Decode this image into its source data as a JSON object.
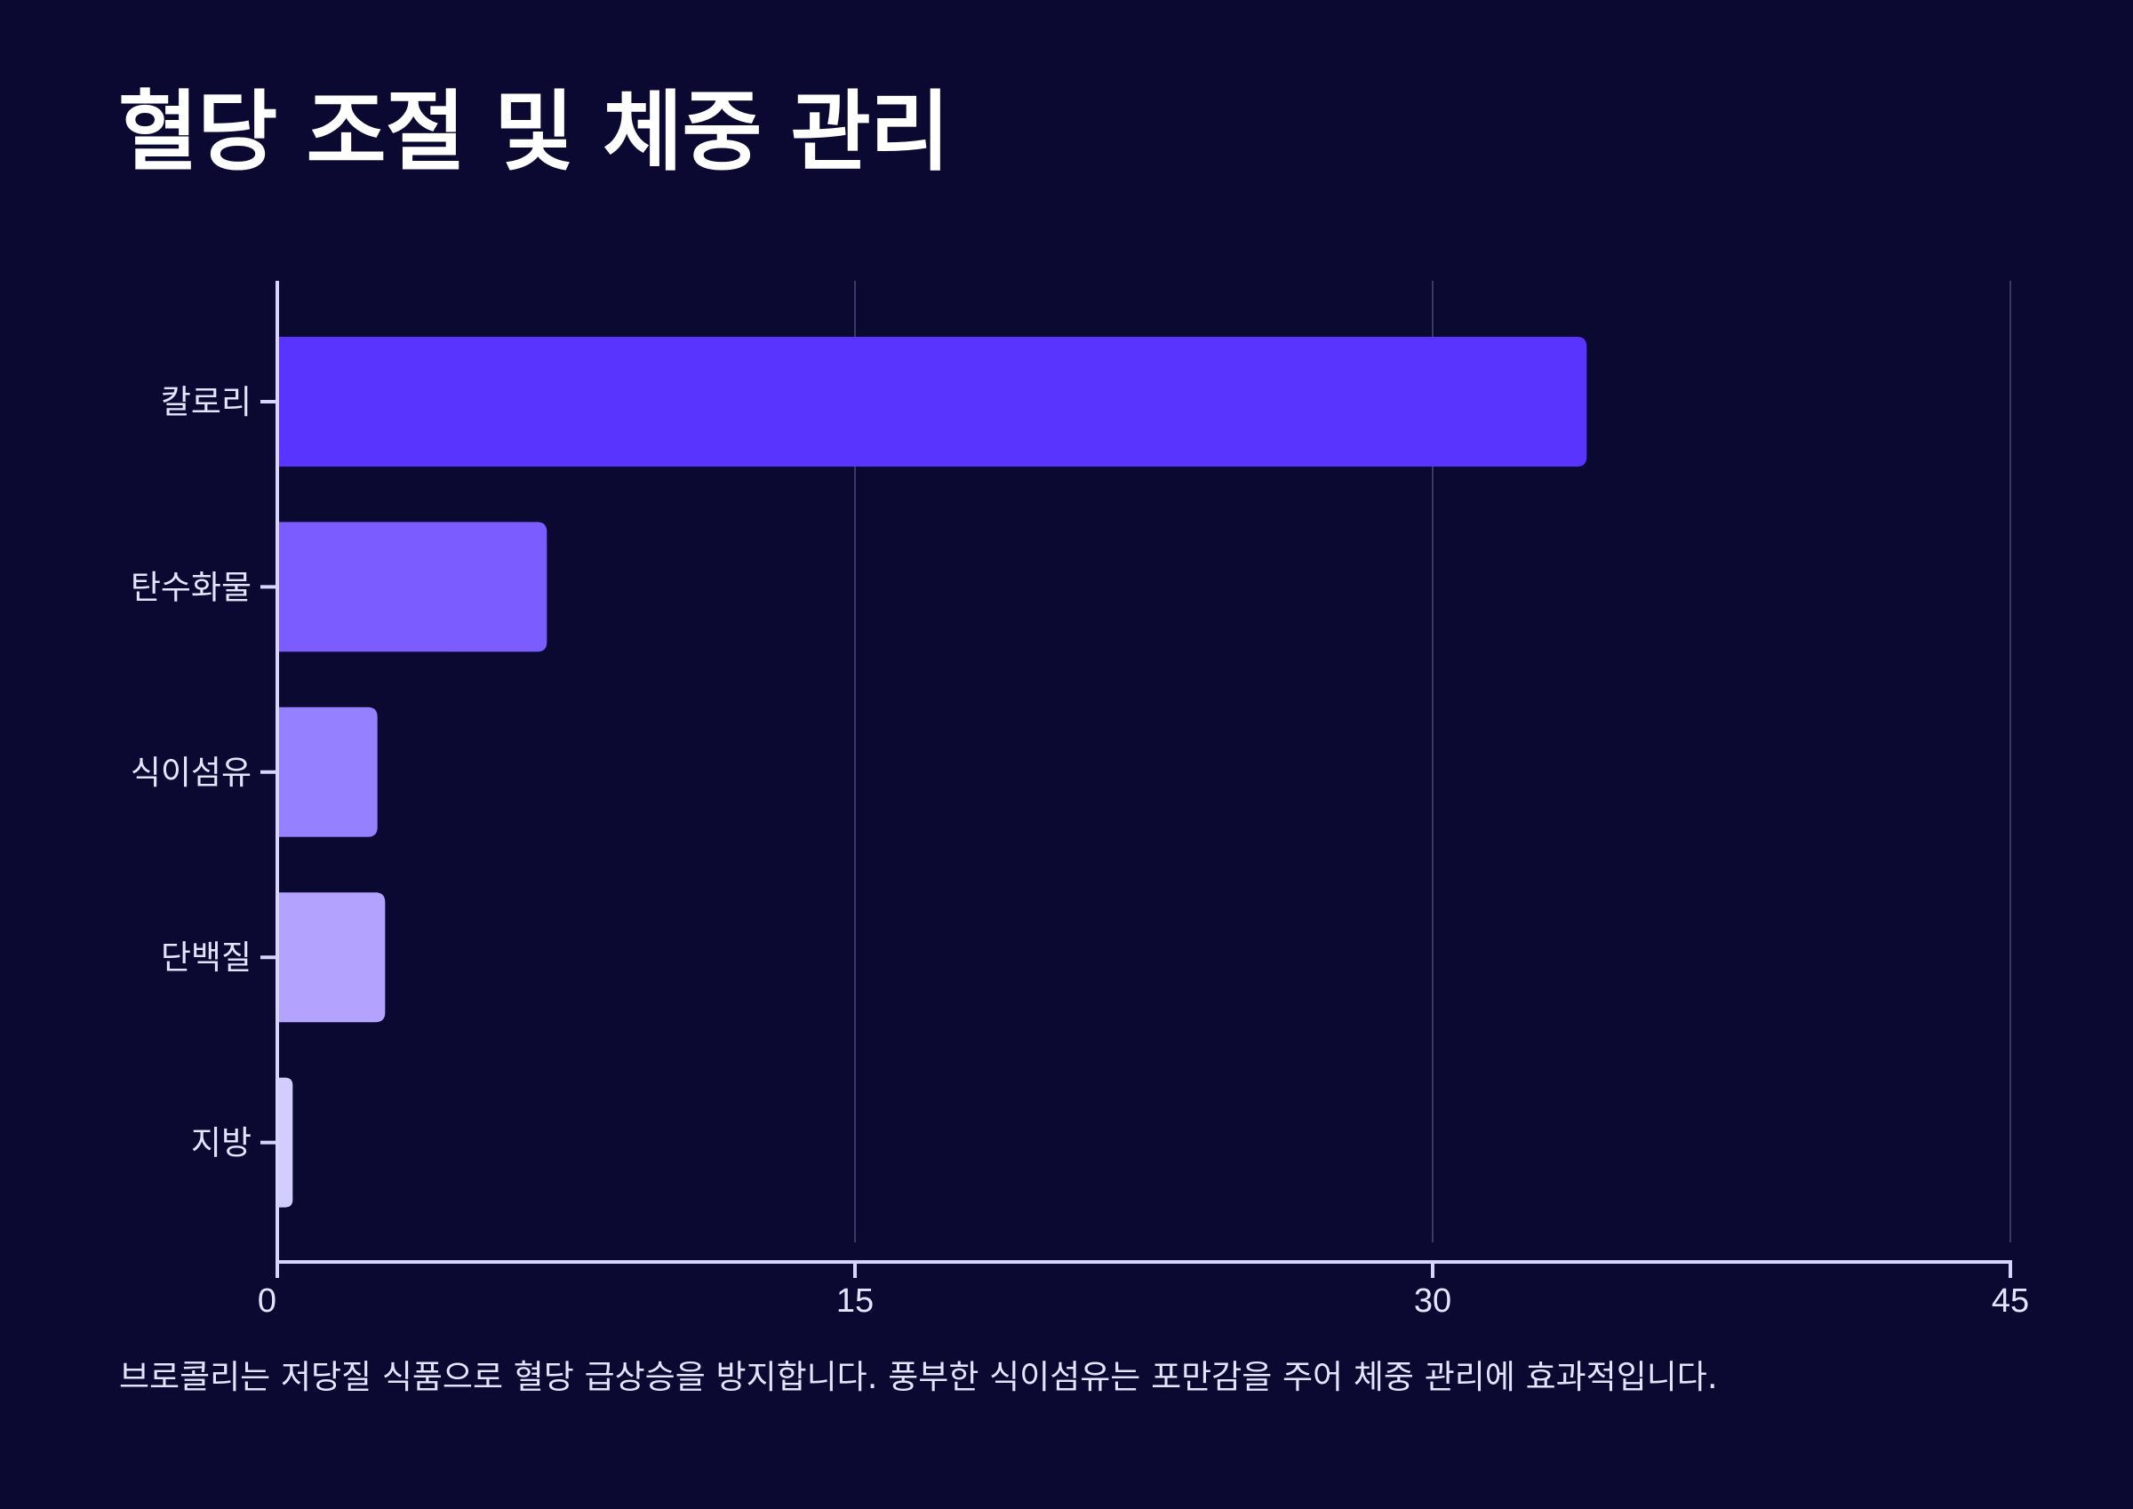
{
  "title": "혈당 조절 및 체중 관리",
  "caption": "브로콜리는 저당질 식품으로 혈당 급상승을 방지합니다. 풍부한 식이섬유는 포만감을 주어 체중 관리에 효과적입니다.",
  "chart_data": {
    "type": "bar",
    "orientation": "horizontal",
    "title": "혈당 조절 및 체중 관리",
    "categories": [
      "칼로리",
      "탄수화물",
      "식이섬유",
      "단백질",
      "지방"
    ],
    "values": [
      34,
      7,
      2.6,
      2.8,
      0.4
    ],
    "colors": [
      "#5933ff",
      "#7a5cff",
      "#9580ff",
      "#b3a3ff",
      "#d3ccff"
    ],
    "xlim": [
      0,
      45
    ],
    "xticks": [
      0,
      15,
      30,
      45
    ],
    "grid": true,
    "legend": "none"
  },
  "colors": {
    "background": "#0b0932",
    "axis": "#d8d4ff",
    "grid": "#3b3867",
    "text": "#e6e3ff"
  }
}
